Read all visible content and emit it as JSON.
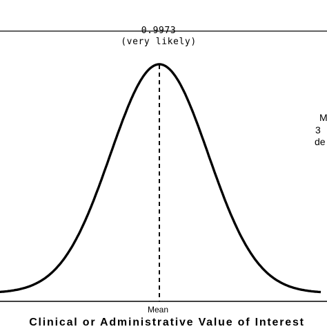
{
  "chart_data": {
    "type": "line",
    "annotation_value": "0.9973",
    "annotation_desc": "(very likely)",
    "side_note_lines": [
      "M",
      "3",
      "de"
    ],
    "x_tick_labels": [
      "Mean"
    ],
    "xlabel": "Clinical or Administrative Value of Interest",
    "ylabel": "",
    "distribution": "normal",
    "mean": 0,
    "sd": 1,
    "xlim": [
      -3.3,
      3.3
    ],
    "mean_line": "dashed",
    "grid": false,
    "colors": {
      "curve": "#000000",
      "axis": "#000000"
    }
  }
}
